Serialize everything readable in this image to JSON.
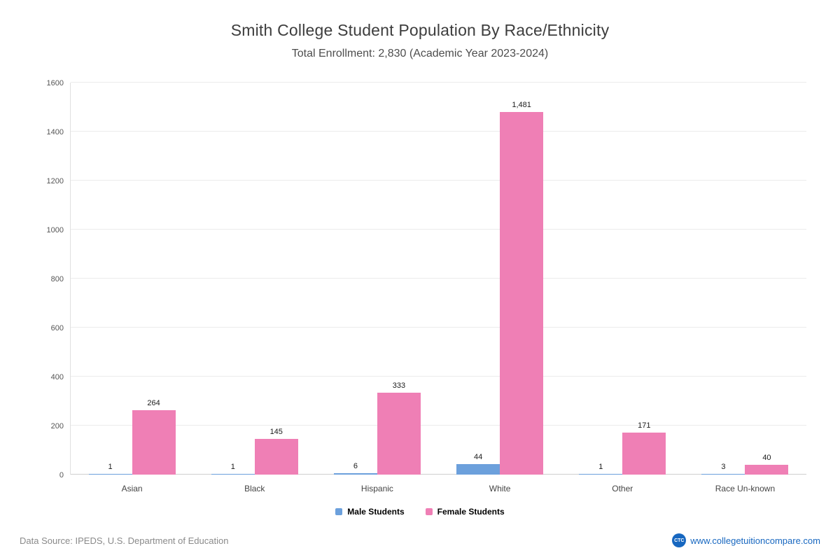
{
  "header": {
    "title": "Smith College Student Population By Race/Ethnicity",
    "subtitle": "Total Enrollment: 2,830 (Academic Year 2023-2024)"
  },
  "chart_data": {
    "type": "bar",
    "categories": [
      "Asian",
      "Black",
      "Hispanic",
      "White",
      "Other",
      "Race Un-known"
    ],
    "series": [
      {
        "name": "Male Students",
        "color": "#6CA0DC",
        "values": [
          1,
          1,
          6,
          44,
          1,
          3
        ]
      },
      {
        "name": "Female Students",
        "color": "#EF7FB5",
        "values": [
          264,
          145,
          333,
          1481,
          171,
          40
        ]
      }
    ],
    "title": "Smith College Student Population By Race/Ethnicity",
    "xlabel": "",
    "ylabel": "",
    "ylim": [
      0,
      1600
    ],
    "ytick_step": 200,
    "grid": true,
    "legend_position": "bottom",
    "value_labels": true
  },
  "footer": {
    "source": "Data Source: IPEDS, U.S. Department of Education",
    "logo_text": "CTC",
    "site": "www.collegetuitioncompare.com"
  }
}
